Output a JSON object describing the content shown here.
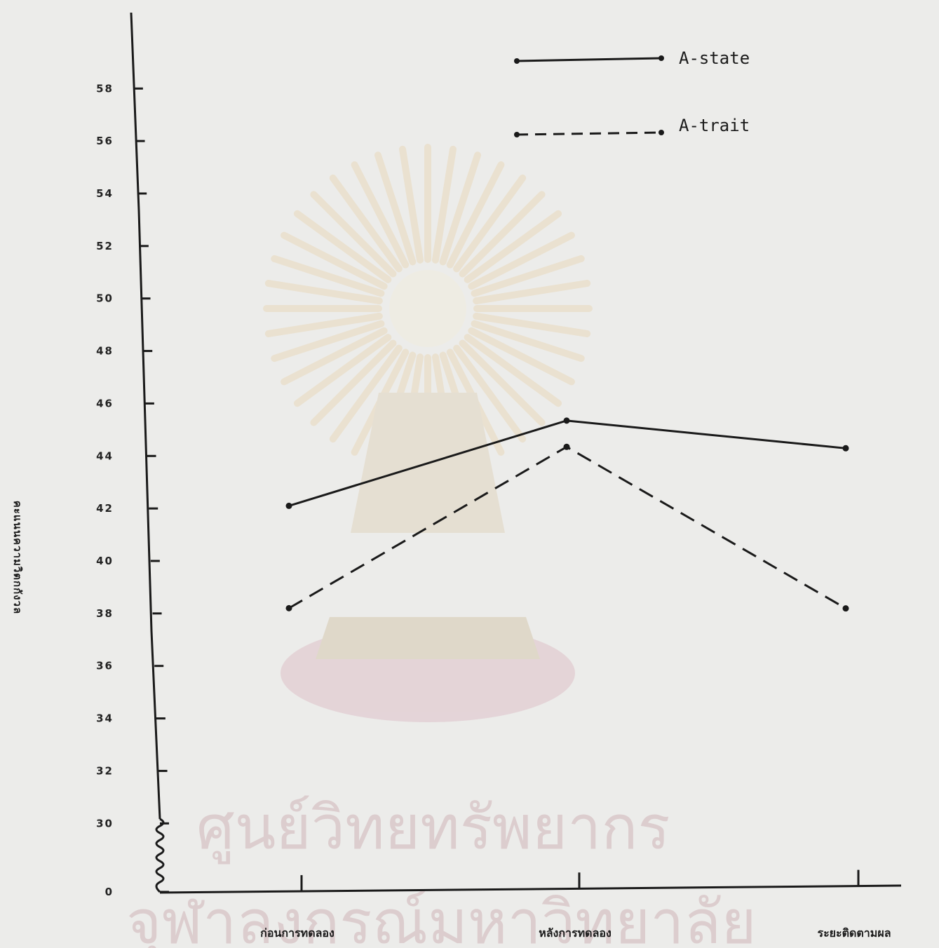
{
  "chart_data": {
    "type": "line",
    "title": "",
    "xlabel": "",
    "ylabel": "คะแนนความวิตกกังวล",
    "categories": [
      "ก่อนการทดลอง",
      "หลังการทดลอง",
      "ระยะติดตามผล"
    ],
    "series": [
      {
        "name": "A-state",
        "style": "solid",
        "values": [
          42.1,
          45.4,
          44.4
        ]
      },
      {
        "name": "A-trait",
        "style": "dashed",
        "values": [
          38.2,
          44.4,
          38.3
        ]
      }
    ],
    "y_ticks": [
      0,
      30,
      32,
      34,
      36,
      38,
      40,
      42,
      44,
      46,
      48,
      50,
      52,
      54,
      56,
      58
    ],
    "y_axis_break": [
      0,
      30
    ],
    "ylim": [
      30,
      59
    ],
    "grid": false,
    "legend_position": "top-right",
    "colors": {
      "line": "#1a1a1a",
      "background": "#ececea",
      "watermark": "#c9a9ad"
    }
  },
  "watermark": {
    "line1": "ศูนย์วิทยทรัพยากร",
    "line2": "จุฬาลงกรณ์มหาวิทยาลัย"
  }
}
